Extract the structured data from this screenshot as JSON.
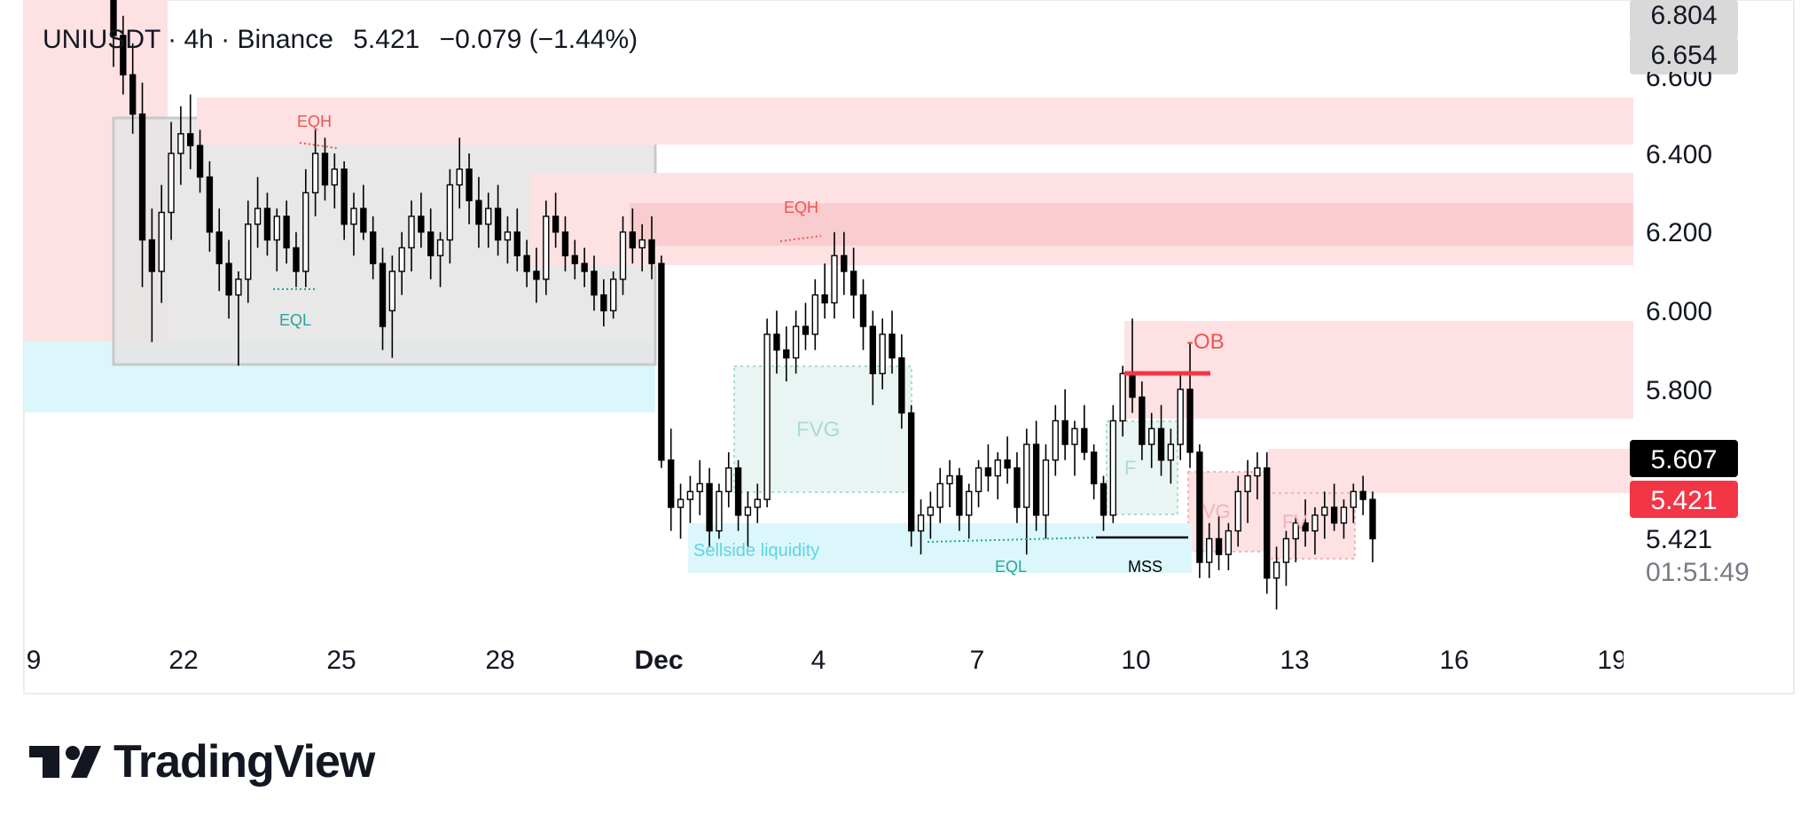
{
  "header": {
    "symbol_line": "UNIUSDT · 4h · Binance",
    "last_price": "5.421",
    "change": "−0.079 (−1.44%)"
  },
  "brand": {
    "name": "TradingView"
  },
  "colors": {
    "zone_red": "#f8c9cd",
    "zone_red_light": "#fde1e3",
    "zone_cyan": "#dcf7fb",
    "range_gray": "#e4e4e4",
    "fvg_fill": "#e9f5f3",
    "label_red": "#ef5350",
    "label_teal": "#26a69a",
    "price_tag_black": "#000000",
    "price_tag_red": "#f23645",
    "candle_up": "#ffffff",
    "candle_down": "#000000"
  },
  "axis": {
    "price_labels": [
      "6.600",
      "6.400",
      "6.200",
      "6.000",
      "5.800"
    ],
    "price_tags": [
      {
        "text": "6.804",
        "style": "gray"
      },
      {
        "text": "6.654",
        "style": "gray"
      },
      {
        "text": "5.607",
        "style": "black"
      },
      {
        "text": "5.421",
        "style": "red"
      }
    ],
    "last_price_text": "5.421",
    "countdown": "01:51:49",
    "x_labels": [
      "9",
      "22",
      "25",
      "28",
      "Dec",
      "4",
      "7",
      "10",
      "13",
      "16",
      "19"
    ]
  },
  "annotations": {
    "eqh_1": "EQH",
    "eqh_2": "EQH",
    "eql_1": "EQL",
    "eql_2": "EQL",
    "fvg": "FVG",
    "ob": "-OB",
    "sellside": "Sellside liquidity",
    "mss": "MSS",
    "fvg_partial_1": "F",
    "fvg_partial_2": "VG",
    "fvg_partial_3": "FV"
  },
  "chart_data": {
    "type": "candlestick",
    "title": "UNIUSDT · 4h · Binance",
    "ylim": [
      5.25,
      6.85
    ],
    "x_range": [
      "Nov 19",
      "Dec 19"
    ],
    "ticks_x": [
      "9",
      "22",
      "25",
      "28",
      "Dec",
      "4",
      "7",
      "10",
      "13",
      "16",
      "19"
    ],
    "ticks_y": [
      6.6,
      6.4,
      6.2,
      6.0,
      5.8
    ],
    "last_price": 5.421,
    "grid": false,
    "zones": [
      {
        "kind": "supply",
        "from": 6.44,
        "to": 6.56
      },
      {
        "kind": "supply",
        "from": 6.13,
        "to": 6.35
      },
      {
        "kind": "order-block",
        "label": "-OB",
        "from": 5.72,
        "to": 5.97
      },
      {
        "kind": "supply",
        "from": 5.49,
        "to": 5.61
      },
      {
        "kind": "demand",
        "from": 5.73,
        "to": 5.91
      },
      {
        "kind": "fvg",
        "label": "FVG",
        "from": 5.49,
        "to": 5.82
      }
    ],
    "liquidity": [
      {
        "label": "EQH",
        "price": 6.54
      },
      {
        "label": "EQH",
        "price": 6.2
      },
      {
        "label": "EQL",
        "price": 6.05
      },
      {
        "label": "EQL",
        "price": 5.41
      },
      {
        "label": "Sellside liquidity",
        "price": 5.38
      },
      {
        "label": "MSS",
        "price": 5.42
      }
    ],
    "candles": [
      [
        6.8,
        6.85,
        6.62,
        6.7
      ],
      [
        6.7,
        6.75,
        6.55,
        6.6
      ],
      [
        6.6,
        6.68,
        6.45,
        6.5
      ],
      [
        6.5,
        6.58,
        6.06,
        6.18
      ],
      [
        6.18,
        6.26,
        5.92,
        6.1
      ],
      [
        6.1,
        6.32,
        6.02,
        6.25
      ],
      [
        6.25,
        6.48,
        6.18,
        6.4
      ],
      [
        6.4,
        6.52,
        6.32,
        6.45
      ],
      [
        6.45,
        6.55,
        6.36,
        6.42
      ],
      [
        6.42,
        6.46,
        6.3,
        6.34
      ],
      [
        6.34,
        6.38,
        6.15,
        6.2
      ],
      [
        6.2,
        6.26,
        6.05,
        6.12
      ],
      [
        6.12,
        6.18,
        5.98,
        6.04
      ],
      [
        6.04,
        6.1,
        5.86,
        6.08
      ],
      [
        6.08,
        6.28,
        6.02,
        6.22
      ],
      [
        6.22,
        6.34,
        6.16,
        6.26
      ],
      [
        6.26,
        6.3,
        6.14,
        6.18
      ],
      [
        6.18,
        6.26,
        6.1,
        6.24
      ],
      [
        6.24,
        6.28,
        6.12,
        6.16
      ],
      [
        6.16,
        6.2,
        6.06,
        6.1
      ],
      [
        6.1,
        6.36,
        6.06,
        6.3
      ],
      [
        6.3,
        6.46,
        6.24,
        6.4
      ],
      [
        6.4,
        6.44,
        6.28,
        6.32
      ],
      [
        6.32,
        6.4,
        6.26,
        6.36
      ],
      [
        6.36,
        6.38,
        6.18,
        6.22
      ],
      [
        6.22,
        6.3,
        6.14,
        6.26
      ],
      [
        6.26,
        6.32,
        6.18,
        6.2
      ],
      [
        6.2,
        6.24,
        6.08,
        6.12
      ],
      [
        6.12,
        6.16,
        5.9,
        5.96
      ],
      [
        6.0,
        6.14,
        5.88,
        6.1
      ],
      [
        6.1,
        6.2,
        6.04,
        6.16
      ],
      [
        6.16,
        6.28,
        6.1,
        6.24
      ],
      [
        6.24,
        6.3,
        6.16,
        6.2
      ],
      [
        6.2,
        6.26,
        6.08,
        6.14
      ],
      [
        6.14,
        6.2,
        6.06,
        6.18
      ],
      [
        6.18,
        6.36,
        6.12,
        6.32
      ],
      [
        6.32,
        6.44,
        6.26,
        6.36
      ],
      [
        6.36,
        6.4,
        6.22,
        6.28
      ],
      [
        6.28,
        6.34,
        6.16,
        6.22
      ],
      [
        6.22,
        6.3,
        6.16,
        6.26
      ],
      [
        6.26,
        6.32,
        6.14,
        6.18
      ],
      [
        6.18,
        6.24,
        6.12,
        6.2
      ],
      [
        6.2,
        6.26,
        6.1,
        6.14
      ],
      [
        6.14,
        6.18,
        6.06,
        6.1
      ],
      [
        6.1,
        6.16,
        6.02,
        6.08
      ],
      [
        6.08,
        6.28,
        6.04,
        6.24
      ],
      [
        6.24,
        6.3,
        6.16,
        6.2
      ],
      [
        6.2,
        6.24,
        6.1,
        6.14
      ],
      [
        6.14,
        6.18,
        6.08,
        6.12
      ],
      [
        6.12,
        6.16,
        6.06,
        6.1
      ],
      [
        6.1,
        6.14,
        6.0,
        6.04
      ],
      [
        6.04,
        6.08,
        5.96,
        6.0
      ],
      [
        6.0,
        6.1,
        5.98,
        6.08
      ],
      [
        6.08,
        6.24,
        6.04,
        6.2
      ],
      [
        6.2,
        6.26,
        6.12,
        6.16
      ],
      [
        6.16,
        6.22,
        6.1,
        6.18
      ],
      [
        6.18,
        6.24,
        6.08,
        6.12
      ],
      [
        6.12,
        6.14,
        5.6,
        5.62
      ],
      [
        5.62,
        5.7,
        5.44,
        5.5
      ],
      [
        5.5,
        5.56,
        5.42,
        5.52
      ],
      [
        5.52,
        5.58,
        5.46,
        5.54
      ],
      [
        5.54,
        5.62,
        5.48,
        5.56
      ],
      [
        5.56,
        5.6,
        5.4,
        5.44
      ],
      [
        5.44,
        5.56,
        5.42,
        5.54
      ],
      [
        5.54,
        5.64,
        5.5,
        5.6
      ],
      [
        5.6,
        5.62,
        5.44,
        5.48
      ],
      [
        5.48,
        5.54,
        5.4,
        5.5
      ],
      [
        5.5,
        5.56,
        5.46,
        5.52
      ],
      [
        5.52,
        5.98,
        5.5,
        5.94
      ],
      [
        5.94,
        6.0,
        5.84,
        5.9
      ],
      [
        5.9,
        5.96,
        5.82,
        5.88
      ],
      [
        5.88,
        6.0,
        5.84,
        5.96
      ],
      [
        5.96,
        6.02,
        5.9,
        5.94
      ],
      [
        5.94,
        6.08,
        5.9,
        6.04
      ],
      [
        6.04,
        6.12,
        5.98,
        6.02
      ],
      [
        6.02,
        6.2,
        5.98,
        6.14
      ],
      [
        6.14,
        6.2,
        6.04,
        6.1
      ],
      [
        6.1,
        6.16,
        5.98,
        6.04
      ],
      [
        6.04,
        6.08,
        5.9,
        5.96
      ],
      [
        5.96,
        6.0,
        5.76,
        5.84
      ],
      [
        5.84,
        5.98,
        5.8,
        5.94
      ],
      [
        5.94,
        6.0,
        5.84,
        5.88
      ],
      [
        5.88,
        5.94,
        5.7,
        5.74
      ],
      [
        5.74,
        5.76,
        5.4,
        5.44
      ],
      [
        5.44,
        5.52,
        5.38,
        5.48
      ],
      [
        5.48,
        5.54,
        5.42,
        5.5
      ],
      [
        5.5,
        5.6,
        5.46,
        5.56
      ],
      [
        5.56,
        5.62,
        5.5,
        5.58
      ],
      [
        5.58,
        5.6,
        5.44,
        5.48
      ],
      [
        5.48,
        5.56,
        5.42,
        5.54
      ],
      [
        5.54,
        5.62,
        5.5,
        5.6
      ],
      [
        5.6,
        5.66,
        5.54,
        5.58
      ],
      [
        5.58,
        5.64,
        5.52,
        5.62
      ],
      [
        5.62,
        5.68,
        5.56,
        5.6
      ],
      [
        5.6,
        5.64,
        5.46,
        5.5
      ],
      [
        5.5,
        5.7,
        5.38,
        5.66
      ],
      [
        5.66,
        5.72,
        5.44,
        5.48
      ],
      [
        5.48,
        5.66,
        5.42,
        5.62
      ],
      [
        5.62,
        5.76,
        5.58,
        5.72
      ],
      [
        5.72,
        5.8,
        5.62,
        5.66
      ],
      [
        5.66,
        5.72,
        5.58,
        5.7
      ],
      [
        5.7,
        5.76,
        5.62,
        5.64
      ],
      [
        5.64,
        5.66,
        5.52,
        5.56
      ],
      [
        5.56,
        5.58,
        5.44,
        5.48
      ],
      [
        5.48,
        5.76,
        5.46,
        5.72
      ],
      [
        5.72,
        5.86,
        5.68,
        5.84
      ],
      [
        5.84,
        5.98,
        5.74,
        5.78
      ],
      [
        5.78,
        5.82,
        5.62,
        5.66
      ],
      [
        5.66,
        5.74,
        5.6,
        5.7
      ],
      [
        5.7,
        5.76,
        5.58,
        5.62
      ],
      [
        5.62,
        5.7,
        5.56,
        5.66
      ],
      [
        5.66,
        5.84,
        5.62,
        5.8
      ],
      [
        5.8,
        5.92,
        5.6,
        5.64
      ],
      [
        5.64,
        5.66,
        5.32,
        5.36
      ],
      [
        5.36,
        5.46,
        5.32,
        5.42
      ],
      [
        5.42,
        5.48,
        5.34,
        5.38
      ],
      [
        5.38,
        5.46,
        5.34,
        5.44
      ],
      [
        5.44,
        5.58,
        5.4,
        5.54
      ],
      [
        5.54,
        5.62,
        5.46,
        5.58
      ],
      [
        5.58,
        5.64,
        5.52,
        5.6
      ],
      [
        5.6,
        5.64,
        5.28,
        5.32
      ],
      [
        5.32,
        5.4,
        5.24,
        5.36
      ],
      [
        5.36,
        5.44,
        5.3,
        5.42
      ],
      [
        5.42,
        5.48,
        5.36,
        5.46
      ],
      [
        5.46,
        5.52,
        5.4,
        5.44
      ],
      [
        5.44,
        5.5,
        5.38,
        5.48
      ],
      [
        5.48,
        5.54,
        5.42,
        5.5
      ],
      [
        5.5,
        5.56,
        5.44,
        5.46
      ],
      [
        5.46,
        5.52,
        5.42,
        5.5
      ],
      [
        5.5,
        5.56,
        5.46,
        5.54
      ],
      [
        5.54,
        5.58,
        5.48,
        5.52
      ],
      [
        5.52,
        5.54,
        5.36,
        5.42
      ]
    ]
  }
}
